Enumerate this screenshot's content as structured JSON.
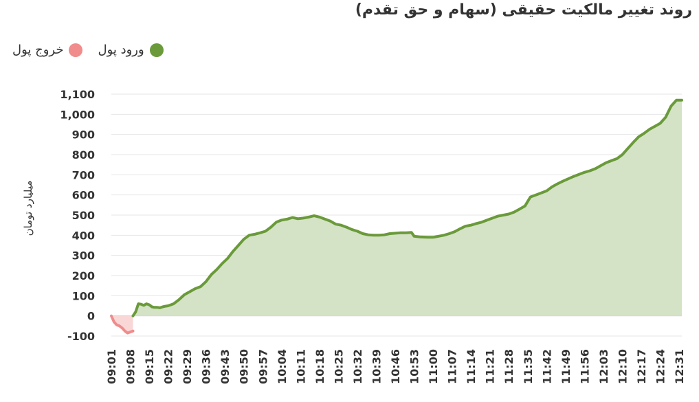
{
  "chart_data": {
    "type": "area",
    "title": "روند تغییر مالکیت حقیقی (سهام و حق تقدم)",
    "ylabel": "میلیارد تومان",
    "xlabel": "",
    "ylim": [
      -100,
      1100
    ],
    "yticks": [
      -100,
      0,
      100,
      200,
      300,
      400,
      500,
      600,
      700,
      800,
      900,
      1000,
      1100
    ],
    "ytick_labels": [
      "-100",
      "0",
      "100",
      "200",
      "300",
      "400",
      "500",
      "600",
      "700",
      "800",
      "900",
      "1,000",
      "1,100"
    ],
    "xtick_labels": [
      "09:01",
      "09:08",
      "09:15",
      "09:22",
      "09:29",
      "09:36",
      "09:43",
      "09:50",
      "09:57",
      "10:04",
      "10:11",
      "10:18",
      "10:25",
      "10:32",
      "10:39",
      "10:46",
      "10:53",
      "11:00",
      "11:07",
      "11:14",
      "11:21",
      "11:28",
      "11:35",
      "11:42",
      "11:49",
      "11:56",
      "12:03",
      "12:10",
      "12:17",
      "12:24",
      "12:31"
    ],
    "legend": [
      {
        "name": "ورود پول",
        "color": "#6a9a3a"
      },
      {
        "name": "خروج پول",
        "color": "#f08c8c"
      }
    ],
    "series": [
      {
        "name": "ورود پول",
        "color": "#6a9a3a",
        "fill": "#d4e3c5",
        "points": [
          [
            "09:09",
            0
          ],
          [
            "09:10",
            20
          ],
          [
            "09:11",
            60
          ],
          [
            "09:12",
            58
          ],
          [
            "09:13",
            52
          ],
          [
            "09:14",
            60
          ],
          [
            "09:15",
            55
          ],
          [
            "09:16",
            45
          ],
          [
            "09:17",
            42
          ],
          [
            "09:18",
            42
          ],
          [
            "09:19",
            40
          ],
          [
            "09:20",
            45
          ],
          [
            "09:21",
            48
          ],
          [
            "09:22",
            50
          ],
          [
            "09:24",
            60
          ],
          [
            "09:26",
            80
          ],
          [
            "09:28",
            105
          ],
          [
            "09:30",
            120
          ],
          [
            "09:32",
            135
          ],
          [
            "09:34",
            145
          ],
          [
            "09:36",
            170
          ],
          [
            "09:38",
            205
          ],
          [
            "09:40",
            230
          ],
          [
            "09:42",
            260
          ],
          [
            "09:44",
            285
          ],
          [
            "09:46",
            320
          ],
          [
            "09:48",
            350
          ],
          [
            "09:50",
            380
          ],
          [
            "09:52",
            400
          ],
          [
            "09:54",
            405
          ],
          [
            "09:56",
            412
          ],
          [
            "09:58",
            420
          ],
          [
            "10:00",
            440
          ],
          [
            "10:02",
            465
          ],
          [
            "10:04",
            475
          ],
          [
            "10:06",
            480
          ],
          [
            "10:08",
            488
          ],
          [
            "10:10",
            482
          ],
          [
            "10:12",
            485
          ],
          [
            "10:14",
            490
          ],
          [
            "10:16",
            497
          ],
          [
            "10:18",
            490
          ],
          [
            "10:20",
            480
          ],
          [
            "10:22",
            470
          ],
          [
            "10:24",
            455
          ],
          [
            "10:26",
            450
          ],
          [
            "10:28",
            440
          ],
          [
            "10:30",
            428
          ],
          [
            "10:32",
            420
          ],
          [
            "10:34",
            408
          ],
          [
            "10:36",
            402
          ],
          [
            "10:38",
            400
          ],
          [
            "10:40",
            400
          ],
          [
            "10:42",
            402
          ],
          [
            "10:44",
            408
          ],
          [
            "10:46",
            410
          ],
          [
            "10:48",
            412
          ],
          [
            "10:50",
            412
          ],
          [
            "10:52",
            414
          ],
          [
            "10:53",
            395
          ],
          [
            "10:55",
            392
          ],
          [
            "10:58",
            390
          ],
          [
            "11:00",
            390
          ],
          [
            "11:02",
            395
          ],
          [
            "11:04",
            400
          ],
          [
            "11:06",
            408
          ],
          [
            "11:08",
            418
          ],
          [
            "11:10",
            432
          ],
          [
            "11:12",
            445
          ],
          [
            "11:14",
            450
          ],
          [
            "11:16",
            458
          ],
          [
            "11:18",
            465
          ],
          [
            "11:20",
            475
          ],
          [
            "11:22",
            485
          ],
          [
            "11:24",
            495
          ],
          [
            "11:26",
            500
          ],
          [
            "11:28",
            505
          ],
          [
            "11:30",
            515
          ],
          [
            "11:32",
            530
          ],
          [
            "11:34",
            545
          ],
          [
            "11:36",
            590
          ],
          [
            "11:38",
            600
          ],
          [
            "11:40",
            610
          ],
          [
            "11:42",
            620
          ],
          [
            "11:44",
            640
          ],
          [
            "11:46",
            655
          ],
          [
            "11:48",
            668
          ],
          [
            "11:50",
            680
          ],
          [
            "11:52",
            692
          ],
          [
            "11:54",
            702
          ],
          [
            "11:56",
            712
          ],
          [
            "11:58",
            720
          ],
          [
            "12:00",
            730
          ],
          [
            "12:02",
            745
          ],
          [
            "12:04",
            760
          ],
          [
            "12:06",
            770
          ],
          [
            "12:08",
            780
          ],
          [
            "12:10",
            800
          ],
          [
            "12:12",
            830
          ],
          [
            "12:14",
            860
          ],
          [
            "12:16",
            888
          ],
          [
            "12:18",
            905
          ],
          [
            "12:20",
            925
          ],
          [
            "12:22",
            940
          ],
          [
            "12:24",
            955
          ],
          [
            "12:26",
            985
          ],
          [
            "12:28",
            1040
          ],
          [
            "12:30",
            1070
          ],
          [
            "12:32",
            1070
          ]
        ]
      },
      {
        "name": "خروج پول",
        "color": "#f08c8c",
        "fill": "#f9d7d7",
        "points": [
          [
            "09:01",
            0
          ],
          [
            "09:02",
            -30
          ],
          [
            "09:03",
            -45
          ],
          [
            "09:04",
            -50
          ],
          [
            "09:05",
            -60
          ],
          [
            "09:06",
            -75
          ],
          [
            "09:07",
            -85
          ],
          [
            "09:08",
            -80
          ],
          [
            "09:09",
            -75
          ]
        ]
      }
    ]
  }
}
